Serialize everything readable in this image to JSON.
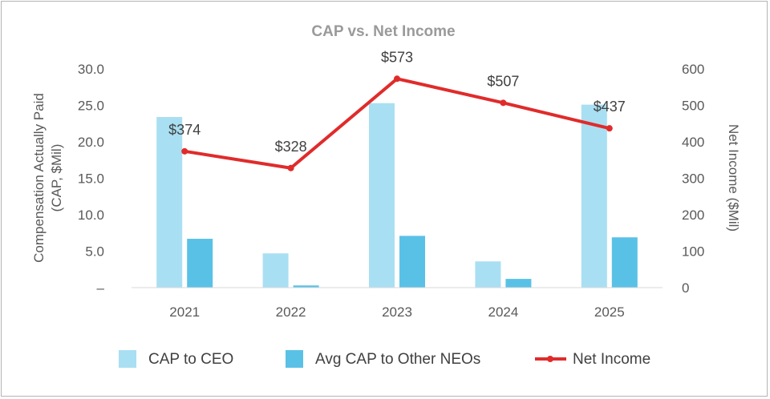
{
  "chart_data": {
    "type": "bar",
    "title": "CAP vs. Net Income",
    "categories": [
      "2021",
      "2022",
      "2023",
      "2024",
      "2025"
    ],
    "y_left": {
      "label_lines": [
        "Compensation Actually Paid",
        "(CAP, $Mil)"
      ],
      "range": [
        0,
        30
      ],
      "ticks": [
        0,
        5,
        10,
        15,
        20,
        25,
        30
      ],
      "tick_labels": [
        "–",
        "5.0",
        "10.0",
        "15.0",
        "20.0",
        "25.0",
        "30.0"
      ]
    },
    "y_right": {
      "label": "Net Income ($Mil)",
      "range": [
        0,
        600
      ],
      "ticks": [
        0,
        100,
        200,
        300,
        400,
        500,
        600
      ],
      "tick_labels": [
        "0",
        "100",
        "200",
        "300",
        "400",
        "500",
        "600"
      ]
    },
    "series": [
      {
        "name": "CAP to CEO",
        "kind": "bar",
        "axis": "left",
        "color": "#a9dff2",
        "values": [
          23.4,
          4.7,
          25.3,
          3.6,
          25.1
        ]
      },
      {
        "name": "Avg CAP to Other NEOs",
        "kind": "bar",
        "axis": "left",
        "color": "#5ac1e6",
        "values": [
          6.7,
          0.3,
          7.1,
          1.2,
          6.9
        ]
      },
      {
        "name": "Net Income",
        "kind": "line",
        "axis": "right",
        "color": "#e02b2b",
        "values": [
          374,
          328,
          573,
          507,
          437
        ],
        "data_labels": [
          "$374",
          "$328",
          "$573",
          "$507",
          "$437"
        ]
      }
    ],
    "grid": false,
    "legend_position": "bottom"
  }
}
